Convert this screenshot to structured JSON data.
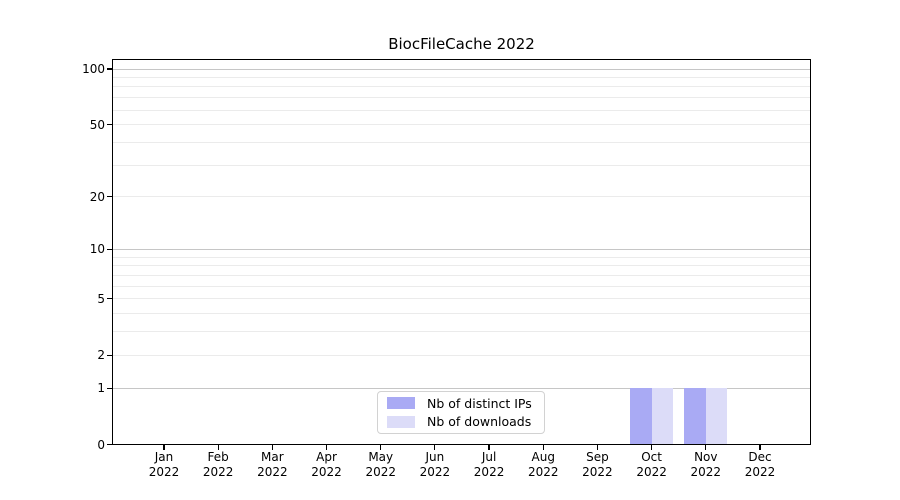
{
  "chart_data": {
    "type": "bar",
    "title": "BiocFileCache 2022",
    "categories": [
      "Jan 2022",
      "Feb 2022",
      "Mar 2022",
      "Apr 2022",
      "May 2022",
      "Jun 2022",
      "Jul 2022",
      "Aug 2022",
      "Sep 2022",
      "Oct 2022",
      "Nov 2022",
      "Dec 2022"
    ],
    "series": [
      {
        "name": "Nb of distinct IPs",
        "color": "#a9aaf4",
        "values": [
          0,
          0,
          0,
          0,
          0,
          0,
          0,
          0,
          0,
          1,
          1,
          0
        ]
      },
      {
        "name": "Nb of downloads",
        "color": "#dcdcf8",
        "values": [
          0,
          0,
          0,
          0,
          0,
          0,
          0,
          0,
          0,
          1,
          1,
          0
        ]
      }
    ],
    "yscale": "log10(1+v)",
    "ylim": [
      0,
      100
    ],
    "y_tick_values": [
      0,
      1,
      2,
      5,
      10,
      20,
      50,
      100
    ],
    "grid": {
      "major_values": [
        1,
        10,
        100
      ],
      "minor_values": [
        2,
        3,
        4,
        5,
        6,
        7,
        8,
        9,
        20,
        30,
        40,
        50,
        60,
        70,
        80,
        90
      ]
    },
    "legend": {
      "position": "bottom-center",
      "entries": [
        "Nb of distinct IPs",
        "Nb of downloads"
      ]
    }
  },
  "colors": {
    "background": "#ffffff",
    "axis": "#000000",
    "grid_major": "#c6c6c6",
    "grid_minor": "#ebebeb",
    "text": "#000000",
    "legend_border": "#d2d2d2"
  }
}
